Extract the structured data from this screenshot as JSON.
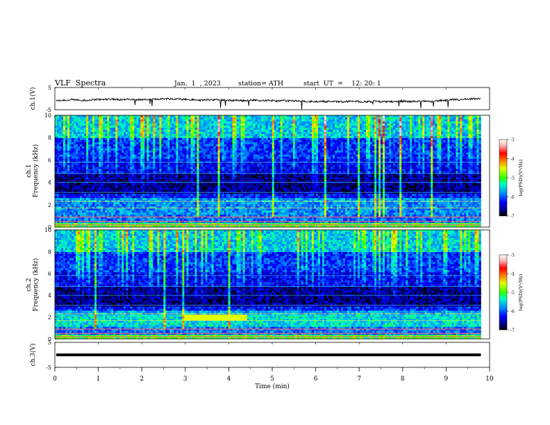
{
  "header": {
    "title": "VLF  Spectra",
    "date": "Jan.  1  , 2023",
    "station": "station= ATH",
    "start": "start  UT  =    12: 20: 1"
  },
  "chart_data": [
    {
      "type": "line",
      "name": "ch1-waveform",
      "ylabel": "ch.1(V)",
      "yticks": [
        5,
        -5
      ],
      "ylim": [
        -5,
        5
      ],
      "xlim": [
        0,
        10
      ],
      "x_extent": [
        0,
        9.8
      ],
      "baseline": -1.0,
      "noise_amplitude": 0.8
    },
    {
      "type": "heatmap",
      "name": "ch1-spectrogram",
      "ylabel": "ch.1\nFrequency  (kHz)",
      "yticks": [
        0,
        2,
        4,
        6,
        8,
        10
      ],
      "ylim": [
        0,
        10
      ],
      "xlim": [
        0,
        10
      ],
      "x_extent": [
        0,
        9.8
      ],
      "colorbar": {
        "label": "log(PSD)(V²/Hz)",
        "ticks": [
          -3,
          -4,
          -5,
          -6,
          -7
        ]
      }
    },
    {
      "type": "heatmap",
      "name": "ch2-spectrogram",
      "ylabel": "ch.2\nFrequency  (kHz)",
      "yticks": [
        0,
        2,
        4,
        6,
        8,
        10
      ],
      "ylim": [
        0,
        10
      ],
      "xlim": [
        0,
        10
      ],
      "x_extent": [
        0,
        9.8
      ],
      "colorbar": {
        "label": "log(PSD)(V²/Hz)",
        "ticks": [
          -3,
          -4,
          -5,
          -6,
          -7
        ]
      }
    },
    {
      "type": "line",
      "name": "ch3-waveform",
      "ylabel": "ch.3(V)",
      "yticks": [
        5,
        -5
      ],
      "ylim": [
        -5,
        5
      ],
      "xlim": [
        0,
        10
      ],
      "x_extent": [
        0,
        9.8
      ],
      "baseline": 0.0,
      "noise_amplitude": 0.0
    }
  ],
  "xaxis": {
    "label": "Time  (min)",
    "ticks": [
      "0",
      "1",
      "2",
      "3",
      "4",
      "5",
      "6",
      "7",
      "8",
      "9",
      "10"
    ]
  },
  "colors": {
    "colormap": [
      "#000000",
      "#00008b",
      "#0000ff",
      "#0060ff",
      "#00c0ff",
      "#00ff90",
      "#40ff00",
      "#c0ff00",
      "#ffff00",
      "#ff8000",
      "#ff0000",
      "#ffc0c0",
      "#ffffff"
    ]
  }
}
